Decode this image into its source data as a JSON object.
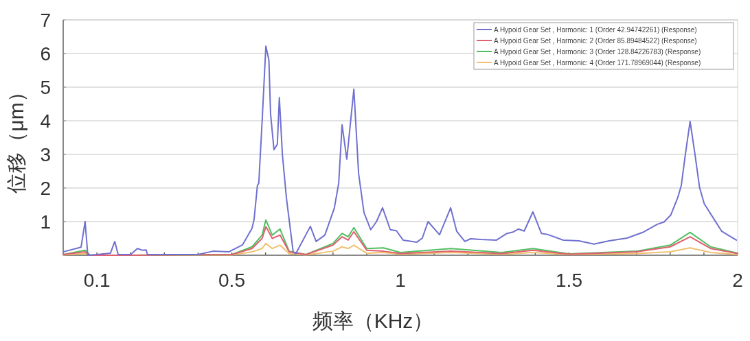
{
  "chart_data": {
    "type": "line",
    "xlabel": "频率（KHz）",
    "ylabel": "位移（μm）",
    "xlim": [
      0,
      2
    ],
    "ylim": [
      0,
      7
    ],
    "xticks": [
      {
        "value": 0.1,
        "label": "0.1"
      },
      {
        "value": 0.2,
        "label": null
      },
      {
        "value": 0.3,
        "label": null
      },
      {
        "value": 0.4,
        "label": null
      },
      0.5,
      {
        "value": 0.6,
        "label": null
      },
      {
        "value": 0.7,
        "label": null
      },
      {
        "value": 0.8,
        "label": null
      },
      {
        "value": 0.9,
        "label": null
      },
      1,
      {
        "value": 1.1,
        "label": null
      },
      {
        "value": 1.2,
        "label": null
      },
      {
        "value": 1.3,
        "label": null
      },
      {
        "value": 1.4,
        "label": null
      },
      1.5,
      {
        "value": 1.6,
        "label": null
      },
      {
        "value": 1.7,
        "label": null
      },
      {
        "value": 1.8,
        "label": null
      },
      {
        "value": 1.9,
        "label": null
      },
      2
    ],
    "yticks": [
      1,
      2,
      3,
      4,
      5,
      6,
      7
    ],
    "grid": "y",
    "legend": "top right",
    "series": [
      {
        "name": "A Hypoid Gear Set , Harmonic: 1 (Order 42.94742261) (Response)",
        "color": "#7070d0",
        "x": [
          0,
          0.053,
          0.065,
          0.073,
          0.1,
          0.14,
          0.153,
          0.163,
          0.2,
          0.22,
          0.235,
          0.246,
          0.25,
          0.3,
          0.4,
          0.444,
          0.491,
          0.532,
          0.56,
          0.566,
          0.576,
          0.58,
          0.59,
          0.601,
          0.61,
          0.615,
          0.625,
          0.635,
          0.641,
          0.65,
          0.662,
          0.682,
          0.69,
          0.733,
          0.75,
          0.776,
          0.804,
          0.817,
          0.827,
          0.841,
          0.862,
          0.876,
          0.892,
          0.912,
          0.929,
          0.947,
          0.97,
          0.988,
          1.008,
          1.049,
          1.065,
          1.082,
          1.116,
          1.149,
          1.167,
          1.191,
          1.208,
          1.238,
          1.285,
          1.316,
          1.334,
          1.35,
          1.367,
          1.393,
          1.418,
          1.436,
          1.483,
          1.529,
          1.574,
          1.619,
          1.672,
          1.721,
          1.762,
          1.782,
          1.802,
          1.823,
          1.833,
          1.845,
          1.859,
          1.873,
          1.887,
          1.901,
          1.927,
          1.953,
          1.996
        ],
        "values": [
          0.1,
          0.24,
          1.0,
          0.0,
          0.02,
          0.06,
          0.41,
          0.02,
          0.02,
          0.2,
          0.15,
          0.16,
          0.02,
          0.02,
          0.02,
          0.12,
          0.1,
          0.31,
          0.8,
          1.06,
          2.08,
          2.14,
          4.0,
          6.22,
          5.8,
          4.2,
          3.14,
          3.3,
          4.69,
          3.0,
          1.7,
          0.1,
          0.05,
          0.86,
          0.41,
          0.6,
          1.4,
          2.14,
          3.88,
          2.86,
          4.94,
          2.43,
          1.27,
          0.76,
          1.0,
          1.41,
          0.76,
          0.73,
          0.45,
          0.39,
          0.51,
          1.0,
          0.61,
          1.41,
          0.71,
          0.41,
          0.49,
          0.47,
          0.45,
          0.65,
          0.69,
          0.78,
          0.72,
          1.29,
          0.65,
          0.62,
          0.45,
          0.43,
          0.33,
          0.43,
          0.51,
          0.69,
          0.92,
          0.99,
          1.2,
          1.73,
          2.08,
          3.0,
          3.98,
          3.04,
          2.02,
          1.53,
          1.12,
          0.71,
          0.45
        ]
      },
      {
        "name": "A Hypoid Gear Set , Harmonic: 2 (Order 85.89484522) (Response)",
        "color": "#e06070",
        "x": [
          0,
          0.065,
          0.08,
          0.2,
          0.5,
          0.56,
          0.59,
          0.601,
          0.62,
          0.643,
          0.67,
          0.72,
          0.8,
          0.827,
          0.845,
          0.862,
          0.9,
          0.95,
          1.0,
          1.15,
          1.3,
          1.393,
          1.5,
          1.7,
          1.8,
          1.859,
          1.92,
          2.0
        ],
        "values": [
          0.02,
          0.1,
          0.0,
          0.0,
          0.02,
          0.2,
          0.5,
          0.85,
          0.5,
          0.6,
          0.1,
          0.02,
          0.3,
          0.55,
          0.45,
          0.7,
          0.15,
          0.12,
          0.05,
          0.12,
          0.05,
          0.15,
          0.03,
          0.1,
          0.25,
          0.55,
          0.2,
          0.05
        ]
      },
      {
        "name": "A Hypoid Gear Set , Harmonic: 3 (Order 128.84226783) (Response)",
        "color": "#50c060",
        "x": [
          0,
          0.065,
          0.08,
          0.2,
          0.5,
          0.56,
          0.59,
          0.601,
          0.62,
          0.643,
          0.67,
          0.72,
          0.8,
          0.827,
          0.845,
          0.862,
          0.9,
          0.95,
          1.0,
          1.15,
          1.3,
          1.393,
          1.5,
          1.7,
          1.8,
          1.859,
          1.92,
          2.0
        ],
        "values": [
          0.02,
          0.15,
          0.0,
          0.0,
          0.02,
          0.25,
          0.6,
          1.05,
          0.6,
          0.78,
          0.12,
          0.02,
          0.35,
          0.65,
          0.55,
          0.82,
          0.2,
          0.22,
          0.08,
          0.2,
          0.08,
          0.2,
          0.04,
          0.12,
          0.3,
          0.68,
          0.25,
          0.06
        ]
      },
      {
        "name": "A Hypoid Gear Set , Harmonic: 4 (Order 171.78969044) (Response)",
        "color": "#f0c070",
        "x": [
          0,
          0.065,
          0.08,
          0.2,
          0.5,
          0.56,
          0.59,
          0.601,
          0.62,
          0.643,
          0.67,
          0.72,
          0.8,
          0.827,
          0.845,
          0.862,
          0.9,
          0.95,
          1.0,
          1.15,
          1.3,
          1.393,
          1.5,
          1.7,
          1.8,
          1.859,
          1.92,
          2.0
        ],
        "values": [
          0.01,
          0.05,
          0.0,
          0.0,
          0.01,
          0.1,
          0.2,
          0.35,
          0.2,
          0.3,
          0.05,
          0.01,
          0.12,
          0.25,
          0.2,
          0.3,
          0.06,
          0.08,
          0.03,
          0.08,
          0.03,
          0.08,
          0.02,
          0.05,
          0.1,
          0.22,
          0.08,
          0.02
        ]
      }
    ]
  }
}
